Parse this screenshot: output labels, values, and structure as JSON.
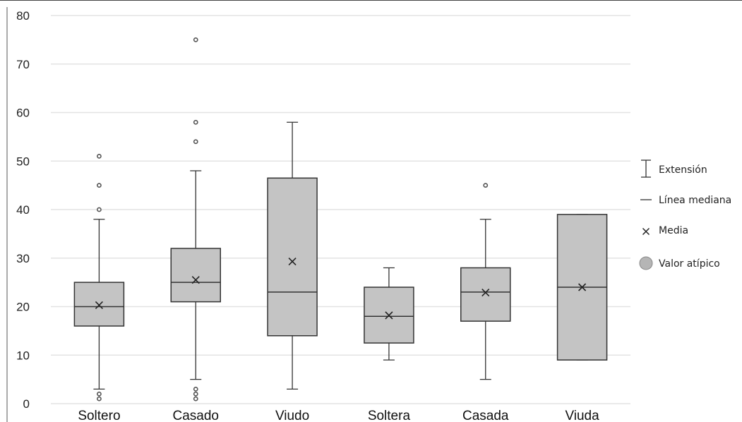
{
  "chart_data": {
    "type": "box",
    "title": "",
    "xlabel": "",
    "ylabel": "",
    "ylim": [
      0,
      80
    ],
    "yticks": [
      0,
      10,
      20,
      30,
      40,
      50,
      60,
      70,
      80
    ],
    "grid": true,
    "legend_position": "right",
    "categories": [
      "Soltero",
      "Casado",
      "Viudo",
      "Soltera",
      "Casada",
      "Viuda"
    ],
    "boxes": [
      {
        "category": "Soltero",
        "whisker_low": 3,
        "q1": 16,
        "median": 20,
        "q3": 25,
        "whisker_high": 38,
        "mean": 20.3,
        "outliers": [
          1,
          2,
          40,
          45,
          51
        ]
      },
      {
        "category": "Casado",
        "whisker_low": 5,
        "q1": 21,
        "median": 25,
        "q3": 32,
        "whisker_high": 48,
        "mean": 25.5,
        "outliers": [
          1,
          2,
          3,
          54,
          58,
          75
        ]
      },
      {
        "category": "Viudo",
        "whisker_low": 3,
        "q1": 14,
        "median": 23,
        "q3": 46.5,
        "whisker_high": 58,
        "mean": 29.3,
        "outliers": []
      },
      {
        "category": "Soltera",
        "whisker_low": 9,
        "q1": 12.5,
        "median": 18,
        "q3": 24,
        "whisker_high": 28,
        "mean": 18.2,
        "outliers": []
      },
      {
        "category": "Casada",
        "whisker_low": 5,
        "q1": 17,
        "median": 23,
        "q3": 28,
        "whisker_high": 38,
        "mean": 22.9,
        "outliers": [
          45
        ]
      },
      {
        "category": "Viuda",
        "whisker_low": 9,
        "q1": 9,
        "median": 24,
        "q3": 39,
        "whisker_high": 39,
        "mean": 24,
        "outliers": []
      }
    ],
    "legend": [
      {
        "symbol": "range",
        "label": "Extensión"
      },
      {
        "symbol": "median",
        "label": "Línea mediana"
      },
      {
        "symbol": "mean",
        "label": "Media"
      },
      {
        "symbol": "outlier",
        "label": "Valor atípico"
      }
    ],
    "colors": {
      "box_fill": "#c4c4c4",
      "stroke": "#333333",
      "grid": "#e3e3e3",
      "outlier": "#555555"
    }
  }
}
